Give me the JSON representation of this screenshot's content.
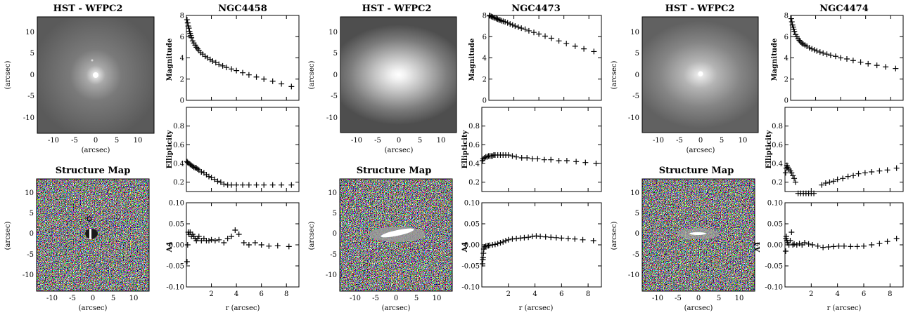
{
  "figure": {
    "galaxies": [
      {
        "name": "NGC4458",
        "image_panel": {
          "title": "HST - WFPC2",
          "xlabel": "(arcsec)",
          "ylabel": "(arcsec)",
          "xticks": [
            "-10",
            "-5",
            "0",
            "5",
            "10"
          ],
          "yticks": [
            "10",
            "5",
            "0",
            "-5",
            "-10"
          ],
          "image_style": "compact bright core, faint extended halo"
        },
        "structure_panel": {
          "title": "Structure Map",
          "xlabel": "(arcsec)",
          "ylabel": "(arcsec)",
          "xticks": [
            "-10",
            "-5",
            "0",
            "5",
            "10"
          ],
          "yticks": [
            "10",
            "5",
            "0",
            "-5",
            "-10"
          ],
          "image_style": "noise with dark central spot"
        }
      },
      {
        "name": "NGC4473",
        "image_panel": {
          "title": "HST - WFPC2",
          "xlabel": "(arcsec)",
          "ylabel": "(arcsec)",
          "xticks": [
            "-10",
            "-5",
            "0",
            "5",
            "10"
          ],
          "yticks": [
            "10",
            "5",
            "0",
            "-5",
            "-10"
          ],
          "image_style": "large elongated bright galaxy"
        },
        "structure_panel": {
          "title": "Structure Map",
          "xlabel": "(arcsec)",
          "ylabel": "(arcsec)",
          "xticks": [
            "-10",
            "-5",
            "0",
            "5",
            "10"
          ],
          "yticks": [
            "10",
            "5",
            "0",
            "-5",
            "-10"
          ],
          "image_style": "noise with bright central disk streak"
        }
      },
      {
        "name": "NGC4474",
        "image_panel": {
          "title": "HST - WFPC2",
          "xlabel": "(arcsec)",
          "ylabel": "(arcsec)",
          "xticks": [
            "-10",
            "-5",
            "0",
            "5",
            "10"
          ],
          "yticks": [
            "10",
            "5",
            "0",
            "-5",
            "-10"
          ],
          "image_style": "elongated moderately bright galaxy"
        },
        "structure_panel": {
          "title": "Structure Map",
          "xlabel": "(arcsec)",
          "ylabel": "(arcsec)",
          "xticks": [
            "-10",
            "-5",
            "0",
            "5",
            "10"
          ],
          "yticks": [
            "10",
            "5",
            "0",
            "-5",
            "-10"
          ],
          "image_style": "noise with faint central streak"
        }
      }
    ],
    "profile_labels": {
      "magnitude": "Magnitude",
      "ellipticity": "Ellipticity",
      "a4": "A4",
      "x_label": "r (arcsec)"
    }
  },
  "chart_data": [
    {
      "type": "scatter",
      "title": "NGC4458",
      "marker": "plus",
      "xlabel": "r (arcsec)",
      "xlim": [
        0,
        9
      ],
      "xticks": [
        2,
        4,
        6,
        8
      ],
      "panels": [
        {
          "ylabel": "Magnitude",
          "ylim": [
            0,
            8
          ],
          "yticks": [
            0,
            2,
            4,
            6,
            8
          ],
          "x": [
            0.05,
            0.1,
            0.15,
            0.2,
            0.25,
            0.3,
            0.35,
            0.4,
            0.5,
            0.6,
            0.7,
            0.8,
            0.9,
            1.0,
            1.15,
            1.3,
            1.5,
            1.7,
            1.9,
            2.1,
            2.35,
            2.6,
            2.9,
            3.2,
            3.6,
            4.0,
            4.5,
            5.0,
            5.6,
            6.2,
            6.9,
            7.6,
            8.4
          ],
          "y": [
            7.6,
            7.3,
            7.0,
            6.8,
            6.5,
            6.3,
            6.1,
            5.9,
            5.6,
            5.4,
            5.2,
            5.0,
            4.85,
            4.7,
            4.5,
            4.35,
            4.15,
            4.0,
            3.85,
            3.7,
            3.55,
            3.4,
            3.25,
            3.1,
            2.95,
            2.8,
            2.6,
            2.4,
            2.2,
            2.0,
            1.8,
            1.55,
            1.3
          ]
        },
        {
          "ylabel": "Ellipticity",
          "ylim": [
            0.1,
            1.0
          ],
          "yticks": [
            0.2,
            0.4,
            0.6,
            0.8
          ],
          "x": [
            0.05,
            0.1,
            0.2,
            0.3,
            0.4,
            0.5,
            0.6,
            0.7,
            0.8,
            0.9,
            1.0,
            1.2,
            1.4,
            1.6,
            1.8,
            2.0,
            2.25,
            2.5,
            2.75,
            3.0,
            3.3,
            3.6,
            4.0,
            4.5,
            5.0,
            5.6,
            6.2,
            6.9,
            7.6,
            8.4
          ],
          "y": [
            0.42,
            0.41,
            0.4,
            0.39,
            0.38,
            0.37,
            0.36,
            0.355,
            0.35,
            0.34,
            0.33,
            0.31,
            0.3,
            0.28,
            0.26,
            0.25,
            0.23,
            0.21,
            0.2,
            0.18,
            0.17,
            0.17,
            0.17,
            0.17,
            0.17,
            0.17,
            0.17,
            0.17,
            0.17,
            0.17
          ]
        },
        {
          "ylabel": "A4",
          "ylim": [
            -0.1,
            0.1
          ],
          "yticks": [
            -0.1,
            -0.05,
            0.0,
            0.05,
            0.1
          ],
          "x": [
            0.05,
            0.1,
            0.15,
            0.2,
            0.3,
            0.4,
            0.5,
            0.6,
            0.7,
            0.8,
            0.9,
            1.0,
            1.2,
            1.4,
            1.6,
            1.8,
            2.0,
            2.3,
            2.6,
            3.0,
            3.3,
            3.6,
            3.9,
            4.2,
            4.6,
            5.0,
            5.5,
            6.0,
            6.6,
            7.3,
            8.2
          ],
          "y": [
            -0.04,
            0.0,
            0.03,
            0.025,
            0.03,
            0.02,
            0.025,
            0.02,
            0.015,
            0.01,
            0.015,
            0.02,
            0.01,
            0.015,
            0.01,
            0.01,
            0.012,
            0.01,
            0.012,
            0.005,
            0.015,
            0.02,
            0.035,
            0.025,
            0.005,
            0.0,
            0.005,
            0.0,
            -0.003,
            -0.002,
            -0.004
          ]
        }
      ]
    },
    {
      "type": "scatter",
      "title": "NGC4473",
      "marker": "plus",
      "xlabel": "r (arcsec)",
      "xlim": [
        0,
        9
      ],
      "xticks": [
        2,
        4,
        6,
        8
      ],
      "panels": [
        {
          "ylabel": "Magnitude",
          "ylim": [
            0,
            8
          ],
          "yticks": [
            0,
            2,
            4,
            6,
            8
          ],
          "x": [
            0.05,
            0.1,
            0.2,
            0.3,
            0.4,
            0.5,
            0.6,
            0.7,
            0.8,
            0.9,
            1.0,
            1.15,
            1.3,
            1.5,
            1.7,
            1.9,
            2.1,
            2.35,
            2.6,
            2.9,
            3.2,
            3.6,
            4.0,
            4.5,
            5.0,
            5.6,
            6.2,
            6.9,
            7.6,
            8.4
          ],
          "y": [
            8.0,
            7.95,
            7.9,
            7.85,
            7.8,
            7.75,
            7.7,
            7.65,
            7.6,
            7.55,
            7.5,
            7.45,
            7.4,
            7.3,
            7.2,
            7.1,
            7.0,
            6.9,
            6.8,
            6.7,
            6.55,
            6.4,
            6.25,
            6.05,
            5.85,
            5.6,
            5.35,
            5.1,
            4.85,
            4.6
          ]
        },
        {
          "ylabel": "Ellipticity",
          "ylim": [
            0.1,
            1.0
          ],
          "yticks": [
            0.2,
            0.4,
            0.6,
            0.8
          ],
          "x": [
            0.05,
            0.1,
            0.2,
            0.3,
            0.4,
            0.5,
            0.6,
            0.7,
            0.8,
            0.9,
            1.0,
            1.2,
            1.4,
            1.6,
            1.8,
            2.0,
            2.3,
            2.6,
            3.0,
            3.4,
            3.8,
            4.2,
            4.7,
            5.2,
            5.8,
            6.4,
            7.1,
            7.8,
            8.6
          ],
          "y": [
            0.43,
            0.45,
            0.46,
            0.47,
            0.47,
            0.48,
            0.48,
            0.48,
            0.48,
            0.49,
            0.49,
            0.49,
            0.49,
            0.49,
            0.49,
            0.49,
            0.48,
            0.47,
            0.46,
            0.46,
            0.45,
            0.45,
            0.44,
            0.44,
            0.43,
            0.43,
            0.42,
            0.41,
            0.4
          ]
        },
        {
          "ylabel": "A4",
          "ylim": [
            -0.1,
            0.1
          ],
          "yticks": [
            -0.1,
            -0.05,
            0.0,
            0.05,
            0.1
          ],
          "x": [
            0.05,
            0.08,
            0.1,
            0.12,
            0.15,
            0.2,
            0.3,
            0.4,
            0.5,
            0.6,
            0.8,
            1.0,
            1.2,
            1.4,
            1.6,
            1.8,
            2.0,
            2.3,
            2.6,
            2.9,
            3.2,
            3.5,
            3.8,
            4.1,
            4.4,
            4.8,
            5.2,
            5.6,
            6.0,
            6.5,
            7.0,
            7.6,
            8.4
          ],
          "y": [
            -0.045,
            -0.035,
            -0.03,
            -0.02,
            -0.01,
            -0.005,
            -0.003,
            -0.002,
            -0.002,
            -0.001,
            0.0,
            0.001,
            0.003,
            0.005,
            0.007,
            0.01,
            0.012,
            0.014,
            0.015,
            0.016,
            0.017,
            0.018,
            0.02,
            0.021,
            0.02,
            0.019,
            0.018,
            0.017,
            0.016,
            0.015,
            0.014,
            0.012,
            0.01
          ]
        }
      ]
    },
    {
      "type": "scatter",
      "title": "NGC4474",
      "marker": "plus",
      "xlabel": "r (arcsec)",
      "xlim": [
        0,
        9
      ],
      "xticks": [
        2,
        4,
        6,
        8
      ],
      "panels": [
        {
          "ylabel": "Magnitude",
          "ylim": [
            0,
            8
          ],
          "yticks": [
            0,
            2,
            4,
            6,
            8
          ],
          "x": [
            0.05,
            0.1,
            0.15,
            0.2,
            0.25,
            0.3,
            0.4,
            0.5,
            0.6,
            0.7,
            0.8,
            0.9,
            1.0,
            1.15,
            1.3,
            1.5,
            1.7,
            1.9,
            2.1,
            2.35,
            2.6,
            2.9,
            3.2,
            3.6,
            4.0,
            4.5,
            5.0,
            5.6,
            6.2,
            6.9,
            7.6,
            8.4
          ],
          "y": [
            7.7,
            7.4,
            7.1,
            6.9,
            6.7,
            6.5,
            6.2,
            6.0,
            5.8,
            5.65,
            5.5,
            5.4,
            5.3,
            5.2,
            5.1,
            4.95,
            4.85,
            4.75,
            4.65,
            4.55,
            4.45,
            4.35,
            4.25,
            4.15,
            4.0,
            3.9,
            3.75,
            3.6,
            3.45,
            3.3,
            3.15,
            3.0
          ]
        },
        {
          "ylabel": "Ellipticity",
          "ylim": [
            0.1,
            1.0
          ],
          "yticks": [
            0.2,
            0.4,
            0.6,
            0.8
          ],
          "x": [
            0.05,
            0.1,
            0.15,
            0.2,
            0.3,
            0.4,
            0.5,
            0.6,
            0.7,
            0.8,
            1.0,
            1.2,
            1.4,
            1.6,
            1.8,
            2.0,
            2.2,
            2.8,
            3.1,
            3.4,
            3.7,
            4.0,
            4.4,
            4.8,
            5.2,
            5.6,
            6.1,
            6.6,
            7.2,
            7.8,
            8.5
          ],
          "y": [
            0.3,
            0.35,
            0.38,
            0.36,
            0.34,
            0.32,
            0.3,
            0.27,
            0.24,
            0.2,
            0.08,
            0.08,
            0.08,
            0.08,
            0.08,
            0.08,
            0.08,
            0.17,
            0.19,
            0.2,
            0.21,
            0.23,
            0.24,
            0.26,
            0.27,
            0.29,
            0.3,
            0.31,
            0.32,
            0.33,
            0.35
          ]
        },
        {
          "ylabel": "A4",
          "ylim": [
            -0.1,
            0.1
          ],
          "yticks": [
            -0.1,
            -0.05,
            0.0,
            0.05,
            0.1
          ],
          "x": [
            0.05,
            0.08,
            0.1,
            0.15,
            0.2,
            0.3,
            0.4,
            0.5,
            0.6,
            0.7,
            0.9,
            1.1,
            1.3,
            1.5,
            1.8,
            2.1,
            2.5,
            2.9,
            3.3,
            3.7,
            4.1,
            4.5,
            5.0,
            5.5,
            6.0,
            6.6,
            7.2,
            7.8,
            8.5
          ],
          "y": [
            -0.015,
            0.015,
            0.02,
            0.01,
            0.005,
            0.0,
            0.01,
            0.03,
            0.0,
            0.002,
            0.0,
            0.003,
            0.0,
            0.005,
            0.002,
            0.0,
            -0.003,
            -0.006,
            -0.005,
            -0.004,
            -0.003,
            -0.003,
            -0.004,
            -0.004,
            -0.003,
            0.0,
            0.003,
            0.008,
            0.015
          ]
        }
      ]
    }
  ]
}
